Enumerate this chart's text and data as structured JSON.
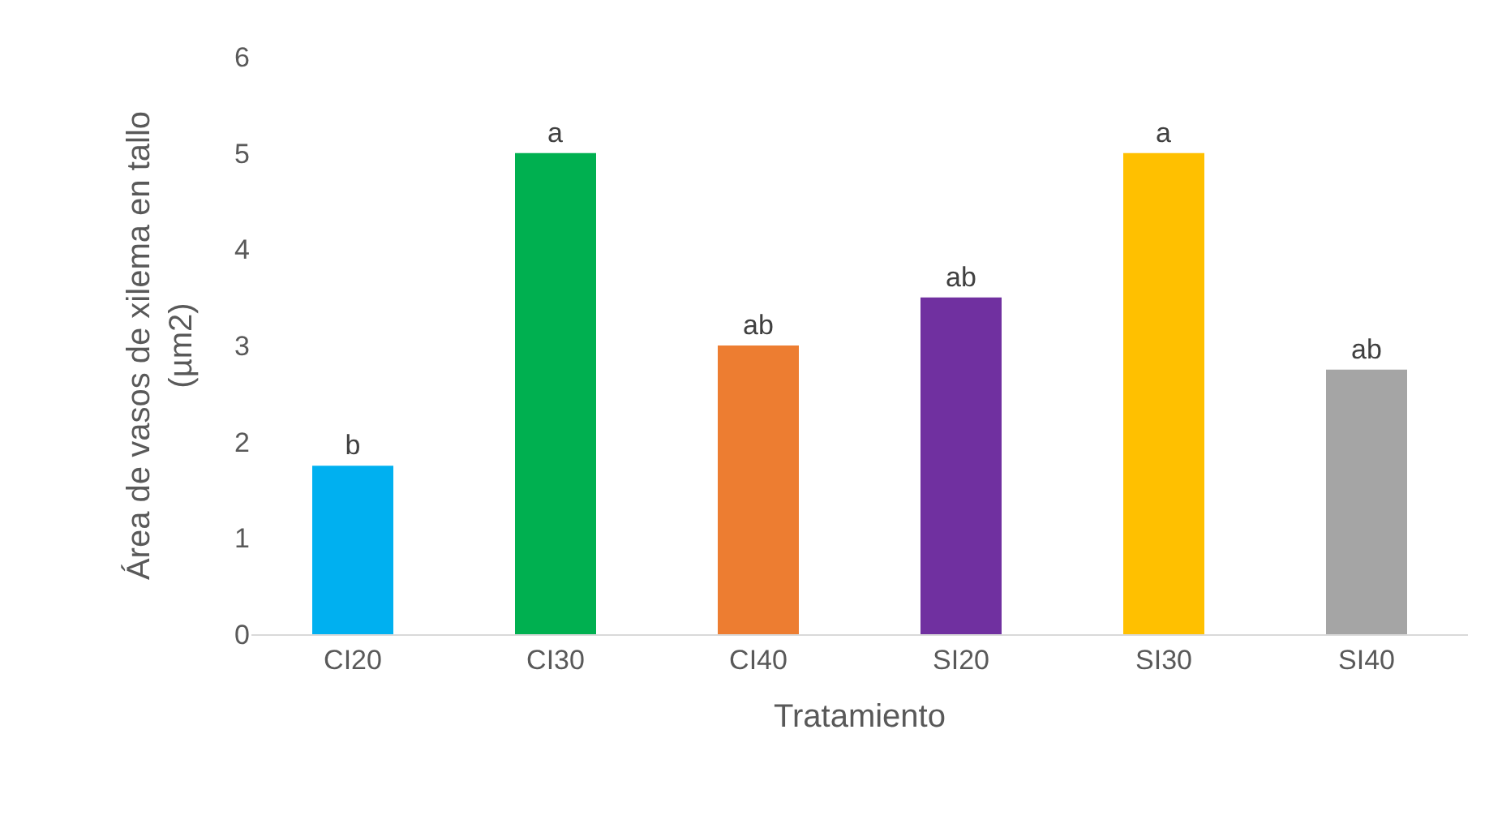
{
  "chart_data": {
    "type": "bar",
    "xlabel": "Tratamiento",
    "ylabel": "Área de vasos de xilema en tallo (µm2)",
    "categories": [
      "CI20",
      "CI30",
      "CI40",
      "SI20",
      "SI30",
      "SI40"
    ],
    "values": [
      1.75,
      5.0,
      3.0,
      3.5,
      5.0,
      2.75
    ],
    "colors": [
      "#00b0f0",
      "#00b050",
      "#ed7d31",
      "#7030a0",
      "#ffc000",
      "#a5a5a5"
    ],
    "value_labels": [
      "b",
      "a",
      "ab",
      "ab",
      "a",
      "ab"
    ],
    "ylim": [
      0,
      6
    ],
    "yticks": [
      0,
      1,
      2,
      3,
      4,
      5,
      6
    ],
    "grid": false,
    "legend": false
  }
}
